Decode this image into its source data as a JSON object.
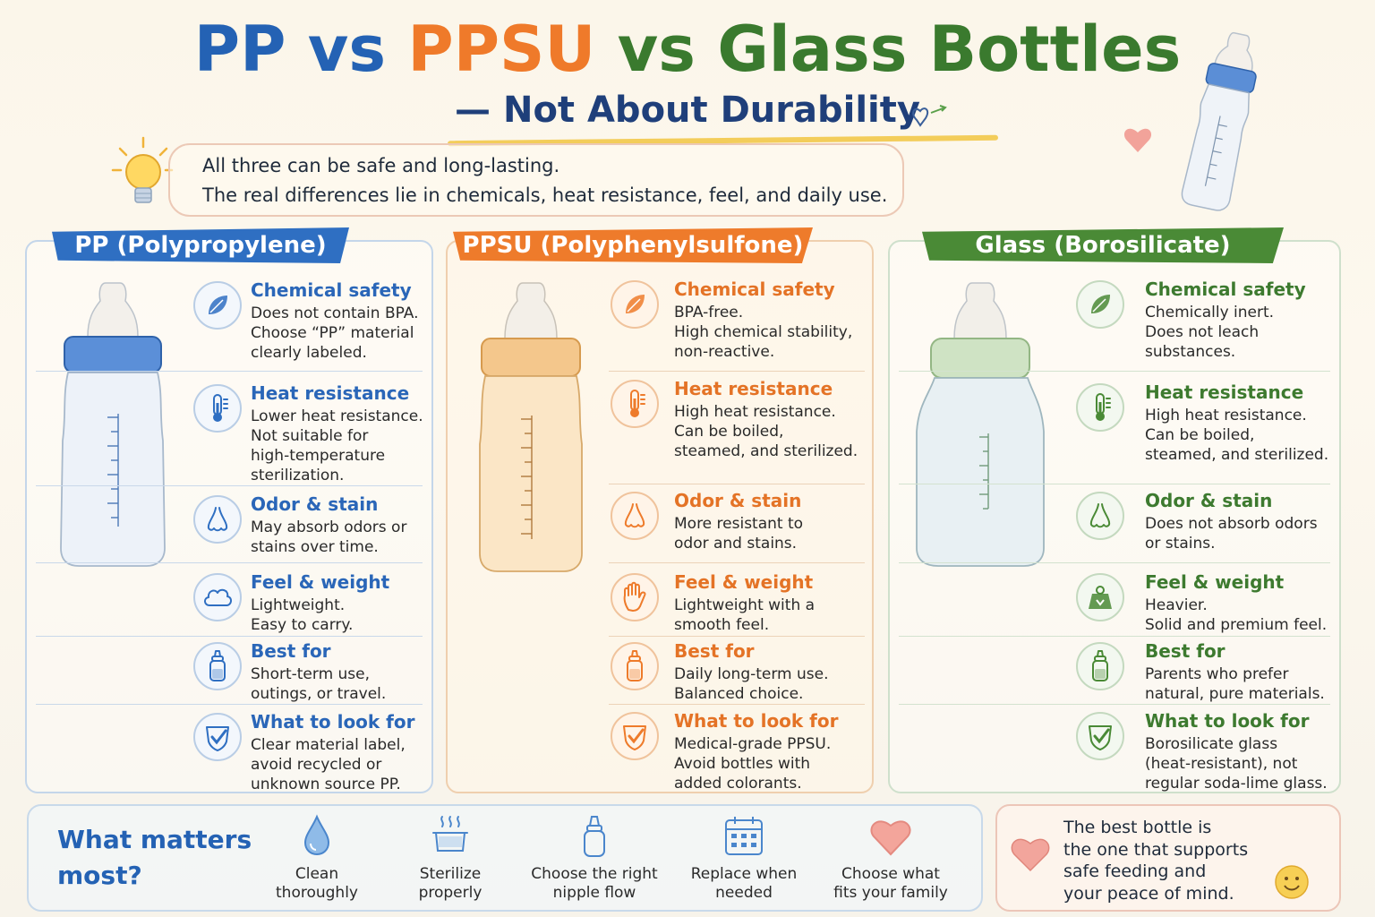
{
  "title": {
    "pp": "PP",
    "vs1": "vs",
    "ppsu": "PPSU",
    "vs2": "vs",
    "glass": "Glass Bottles"
  },
  "subtitle": "— Not About Durability",
  "intro": {
    "line1": "All three can be safe and long-lasting.",
    "line2": "The real differences lie in chemicals, heat resistance, feel, and daily use."
  },
  "colors": {
    "pp": "#2f6fc2",
    "ppsu": "#ee7b2b",
    "glass": "#4a8a36"
  },
  "columns": {
    "pp": {
      "header": "PP  (Polypropylene)",
      "rows": [
        {
          "icon": "leaf-icon",
          "title": "Chemical safety",
          "body": "Does not contain BPA.\nChoose “PP” material\nclearly labeled."
        },
        {
          "icon": "thermometer-icon",
          "title": "Heat resistance",
          "body": "Lower heat resistance.\nNot suitable for\nhigh-temperature\nsterilization."
        },
        {
          "icon": "nose-icon",
          "title": "Odor & stain",
          "body": "May absorb odors or\nstains over time."
        },
        {
          "icon": "cloud-icon",
          "title": "Feel & weight",
          "body": "Lightweight.\nEasy to carry."
        },
        {
          "icon": "bottle-icon",
          "title": "Best for",
          "body": "Short-term use,\noutings, or travel."
        },
        {
          "icon": "checkmark-shield-icon",
          "title": "What to look for",
          "body": "Clear material label,\navoid recycled or\nunknown source PP."
        }
      ]
    },
    "ppsu": {
      "header": "PPSU  (Polyphenylsulfone)",
      "rows": [
        {
          "icon": "leaf-icon",
          "title": "Chemical safety",
          "body": "BPA-free.\nHigh chemical stability,\nnon-reactive."
        },
        {
          "icon": "thermometer-icon",
          "title": "Heat resistance",
          "body": "High heat resistance.\nCan be boiled,\nsteamed, and sterilized."
        },
        {
          "icon": "nose-icon",
          "title": "Odor & stain",
          "body": "More resistant to\nodor and stains."
        },
        {
          "icon": "hand-icon",
          "title": "Feel & weight",
          "body": "Lightweight with a\nsmooth feel."
        },
        {
          "icon": "bottle-icon",
          "title": "Best for",
          "body": "Daily long-term use.\nBalanced choice."
        },
        {
          "icon": "checkmark-shield-icon",
          "title": "What to look for",
          "body": "Medical-grade PPSU.\nAvoid bottles with\nadded colorants."
        }
      ]
    },
    "glass": {
      "header": "Glass  (Borosilicate)",
      "rows": [
        {
          "icon": "leaf-icon",
          "title": "Chemical safety",
          "body": "Chemically inert.\nDoes not leach\nsubstances."
        },
        {
          "icon": "thermometer-icon",
          "title": "Heat resistance",
          "body": "High heat resistance.\nCan be boiled,\nsteamed, and sterilized."
        },
        {
          "icon": "nose-icon",
          "title": "Odor & stain",
          "body": "Does not absorb odors\nor stains."
        },
        {
          "icon": "weight-icon",
          "title": "Feel & weight",
          "body": "Heavier.\nSolid and premium feel."
        },
        {
          "icon": "bottle-icon",
          "title": "Best for",
          "body": "Parents who prefer\nnatural, pure materials."
        },
        {
          "icon": "checkmark-shield-icon",
          "title": "What to look for",
          "body": "Borosilicate glass\n(heat-resistant), not\nregular soda-lime glass."
        }
      ]
    }
  },
  "bottom": {
    "heading": "What matters\nmost?",
    "tips": [
      {
        "icon": "water-drop-icon",
        "label": "Clean\nthoroughly"
      },
      {
        "icon": "steam-pot-icon",
        "label": "Sterilize\nproperly"
      },
      {
        "icon": "nipple-bottle-icon",
        "label": "Choose the right\nnipple flow"
      },
      {
        "icon": "calendar-icon",
        "label": "Replace when\nneeded"
      },
      {
        "icon": "heart-icon",
        "label": "Choose what\nfits your family"
      }
    ],
    "closing": "The best bottle is\nthe one that supports\nsafe feeding and\nyour peace of mind."
  }
}
